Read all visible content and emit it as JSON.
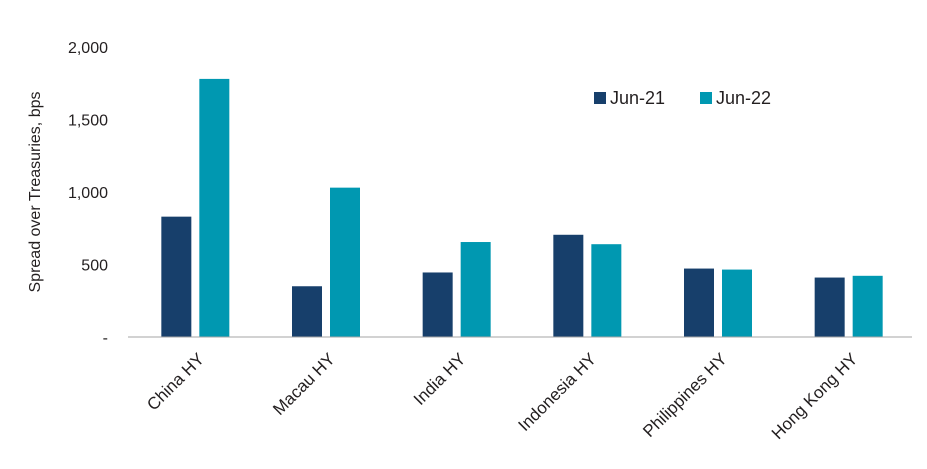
{
  "chart_data": {
    "type": "bar",
    "title": "",
    "xlabel": "",
    "ylabel": "Spread over Treasuries, bps",
    "categories": [
      "China HY",
      "Macau HY",
      "India HY",
      "Indonesia HY",
      "Philippines HY",
      "Hong Kong HY"
    ],
    "series": [
      {
        "name": "Jun-21",
        "color": "#173f6b",
        "values": [
          830,
          350,
          445,
          705,
          472,
          410
        ]
      },
      {
        "name": "Jun-22",
        "color": "#0098b1",
        "values": [
          1780,
          1030,
          655,
          640,
          465,
          422
        ]
      }
    ],
    "ylim": [
      0,
      2000
    ],
    "yticks": [
      0,
      500,
      1000,
      1500,
      2000
    ],
    "ytick_labels": [
      "-",
      "500",
      "1,000",
      "1,500",
      "2,000"
    ],
    "grid": false,
    "legend": "top-right"
  }
}
